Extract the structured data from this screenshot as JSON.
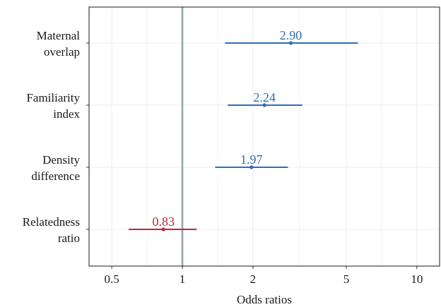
{
  "chart_data": {
    "type": "forest",
    "xlabel": "Odds ratios",
    "ylabel": "",
    "x_scale": "log",
    "xlim": [
      0.4,
      12.5
    ],
    "x_ticks": [
      {
        "value": 0.5,
        "label": "0.5"
      },
      {
        "value": 1,
        "label": "1"
      },
      {
        "value": 2,
        "label": "2"
      },
      {
        "value": 5,
        "label": "5"
      },
      {
        "value": 10,
        "label": "10"
      }
    ],
    "reference_line": 1,
    "grid": true,
    "colors": {
      "positive": "#2f6db5",
      "negative": "#b8283a",
      "reference": "#8fa3ad",
      "grid": "#ececec"
    },
    "rows": [
      {
        "label_lines": [
          "Maternal",
          "overlap"
        ],
        "estimate": 2.9,
        "label": "2.90",
        "ci_low": 1.52,
        "ci_high": 5.6
      },
      {
        "label_lines": [
          "Familiarity",
          "index"
        ],
        "estimate": 2.24,
        "label": "2.24",
        "ci_low": 1.56,
        "ci_high": 3.25
      },
      {
        "label_lines": [
          "Density",
          "difference"
        ],
        "estimate": 1.97,
        "label": "1.97",
        "ci_low": 1.38,
        "ci_high": 2.82
      },
      {
        "label_lines": [
          "Relatedness",
          "ratio"
        ],
        "estimate": 0.83,
        "label": "0.83",
        "ci_low": 0.59,
        "ci_high": 1.15
      }
    ]
  }
}
